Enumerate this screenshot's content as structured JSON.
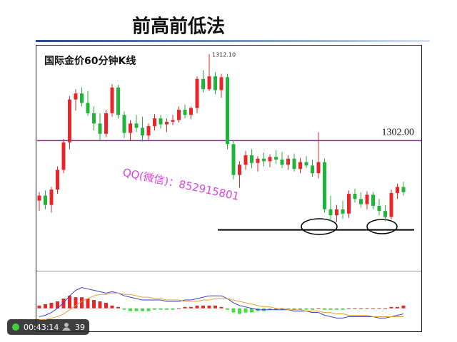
{
  "slide": {
    "title": "前高前低法"
  },
  "chart_data": [
    {
      "type": "candlestick",
      "title": "国际金价60分钟K线",
      "open": [
        1295.0,
        1295.6,
        1294.5,
        1296.3,
        1298.6,
        1301.8,
        1306.8,
        1307.5,
        1306.4,
        1305.2,
        1304.0,
        1302.8,
        1305.2,
        1308.2,
        1305.0,
        1302.9,
        1304.0,
        1303.5,
        1302.6,
        1303.7,
        1304.6,
        1303.9,
        1304.2,
        1304.4,
        1305.6,
        1305.0,
        1305.8,
        1309.2,
        1308.0,
        1309.5,
        1307.9,
        1309.4,
        1301.6,
        1298.0,
        1299.2,
        1300.3,
        1299.4,
        1299.9,
        1299.6,
        1300.1,
        1299.8,
        1299.2,
        1299.9,
        1298.7,
        1299.5,
        1299.1,
        1298.2,
        1299.5,
        1294.0,
        1293.3,
        1294.0,
        1293.5,
        1295.8,
        1295.2,
        1294.6,
        1295.7,
        1294.4,
        1293.8,
        1293.1,
        1295.9,
        1296.6
      ],
      "high": [
        1296.0,
        1296.2,
        1296.6,
        1299.0,
        1302.2,
        1307.2,
        1308.0,
        1308.2,
        1307.8,
        1306.0,
        1305.2,
        1305.6,
        1308.6,
        1308.5,
        1305.4,
        1304.4,
        1305.0,
        1304.8,
        1304.0,
        1305.1,
        1305.0,
        1304.6,
        1305.0,
        1306.0,
        1306.2,
        1306.0,
        1309.5,
        1310.2,
        1312.1,
        1310.0,
        1309.8,
        1309.8,
        1302.0,
        1299.6,
        1300.8,
        1301.0,
        1300.2,
        1300.6,
        1300.4,
        1300.9,
        1300.7,
        1300.3,
        1300.5,
        1300.0,
        1300.2,
        1299.8,
        1303.0,
        1299.9,
        1295.6,
        1294.5,
        1295.0,
        1296.2,
        1296.4,
        1296.0,
        1296.1,
        1296.0,
        1295.2,
        1294.5,
        1296.3,
        1297.0,
        1297.2
      ],
      "low": [
        1293.8,
        1294.0,
        1293.6,
        1295.8,
        1298.2,
        1301.0,
        1305.5,
        1306.0,
        1304.9,
        1303.2,
        1302.0,
        1302.4,
        1304.8,
        1304.6,
        1302.3,
        1302.0,
        1303.0,
        1301.9,
        1302.1,
        1303.2,
        1303.4,
        1303.0,
        1303.8,
        1304.1,
        1304.6,
        1304.5,
        1305.2,
        1307.6,
        1307.8,
        1307.4,
        1307.0,
        1301.0,
        1297.5,
        1296.5,
        1298.6,
        1298.8,
        1298.4,
        1299.0,
        1298.9,
        1299.3,
        1298.8,
        1298.6,
        1298.4,
        1298.2,
        1298.8,
        1297.8,
        1297.6,
        1293.6,
        1292.6,
        1292.5,
        1292.9,
        1293.0,
        1294.8,
        1294.2,
        1294.0,
        1294.0,
        1293.3,
        1292.6,
        1292.8,
        1295.2,
        1295.6
      ],
      "close": [
        1295.6,
        1294.5,
        1296.3,
        1298.6,
        1301.8,
        1306.8,
        1307.5,
        1306.4,
        1305.2,
        1304.0,
        1302.8,
        1305.2,
        1308.2,
        1305.0,
        1302.9,
        1304.0,
        1303.5,
        1302.6,
        1303.7,
        1304.6,
        1303.9,
        1304.2,
        1304.4,
        1305.6,
        1305.0,
        1305.8,
        1309.2,
        1308.0,
        1309.5,
        1307.9,
        1309.4,
        1301.6,
        1298.0,
        1299.2,
        1300.3,
        1299.4,
        1299.9,
        1299.6,
        1300.1,
        1299.8,
        1299.2,
        1299.9,
        1298.7,
        1299.5,
        1299.1,
        1298.2,
        1299.5,
        1294.0,
        1293.3,
        1294.0,
        1293.5,
        1295.8,
        1295.2,
        1294.6,
        1295.7,
        1294.4,
        1293.8,
        1293.1,
        1295.9,
        1296.6,
        1296.0
      ],
      "up_color": "#e8262a",
      "down_color": "#1fb53a",
      "ylim": [
        1287,
        1313
      ],
      "annotations": [
        {
          "value": 1312.1,
          "label": "1312.10"
        }
      ],
      "reference_lines": [
        {
          "value": 1302,
          "label": "1302.00",
          "color": "#8e1f8e"
        },
        {
          "value": 1291.6,
          "color": "#000000"
        }
      ]
    },
    {
      "type": "macd",
      "histogram": [
        0.2,
        0.3,
        0.4,
        0.5,
        0.7,
        0.9,
        0.8,
        0.8,
        0.7,
        0.6,
        0.5,
        0.4,
        0.2,
        0.1,
        -0.1,
        -0.2,
        -0.2,
        -0.2,
        -0.2,
        -0.1,
        -0.1,
        -0.1,
        -0.1,
        0,
        0.1,
        0.1,
        0.2,
        0.2,
        0.2,
        0.2,
        0.1,
        -0.1,
        -0.3,
        -0.4,
        -0.3,
        -0.3,
        -0.2,
        -0.2,
        -0.1,
        -0.1,
        -0.1,
        -0.1,
        -0.1,
        -0.1,
        -0.1,
        -0.1,
        0,
        -0.1,
        -0.1,
        -0.1,
        -0.1,
        0,
        0,
        0,
        0,
        0,
        0,
        0,
        0.1,
        0.1,
        0.2
      ],
      "lines": [
        {
          "color": "#3a3ad0",
          "values": [
            -0.6,
            -0.5,
            -0.3,
            0,
            0.4,
            0.9,
            1.3,
            1.5,
            1.4,
            1.3,
            1.2,
            1.1,
            1.2,
            1.1,
            0.9,
            0.8,
            0.7,
            0.6,
            0.6,
            0.6,
            0.6,
            0.5,
            0.5,
            0.5,
            0.6,
            0.6,
            0.7,
            0.8,
            0.9,
            0.9,
            0.9,
            0.7,
            0.4,
            0.2,
            0.1,
            0,
            -0.1,
            -0.1,
            -0.1,
            -0.1,
            -0.1,
            -0.1,
            -0.2,
            -0.2,
            -0.2,
            -0.3,
            -0.3,
            -0.5,
            -0.6,
            -0.7,
            -0.7,
            -0.6,
            -0.6,
            -0.6,
            -0.6,
            -0.6,
            -0.7,
            -0.7,
            -0.6,
            -0.5,
            -0.4
          ]
        },
        {
          "color": "#e0a030",
          "values": [
            -0.8,
            -0.8,
            -0.7,
            -0.6,
            -0.4,
            -0.1,
            0.2,
            0.5,
            0.7,
            0.9,
            1.0,
            1.0,
            1.1,
            1.1,
            1.0,
            1.0,
            0.9,
            0.8,
            0.8,
            0.7,
            0.7,
            0.6,
            0.6,
            0.6,
            0.5,
            0.5,
            0.5,
            0.6,
            0.6,
            0.7,
            0.7,
            0.7,
            0.6,
            0.5,
            0.4,
            0.3,
            0.2,
            0.1,
            0.1,
            0,
            0,
            -0.1,
            -0.1,
            -0.1,
            -0.2,
            -0.2,
            -0.2,
            -0.3,
            -0.3,
            -0.4,
            -0.4,
            -0.5,
            -0.5,
            -0.5,
            -0.5,
            -0.6,
            -0.6,
            -0.6,
            -0.6,
            -0.6,
            -0.6
          ]
        }
      ],
      "ylim": [
        -1.5,
        2.5
      ],
      "up_color": "#e8262a",
      "down_color": "#44dd44"
    }
  ],
  "watermark": "QQ(微信)：852915801",
  "player": {
    "time": "00:43:14",
    "viewers": 39
  }
}
